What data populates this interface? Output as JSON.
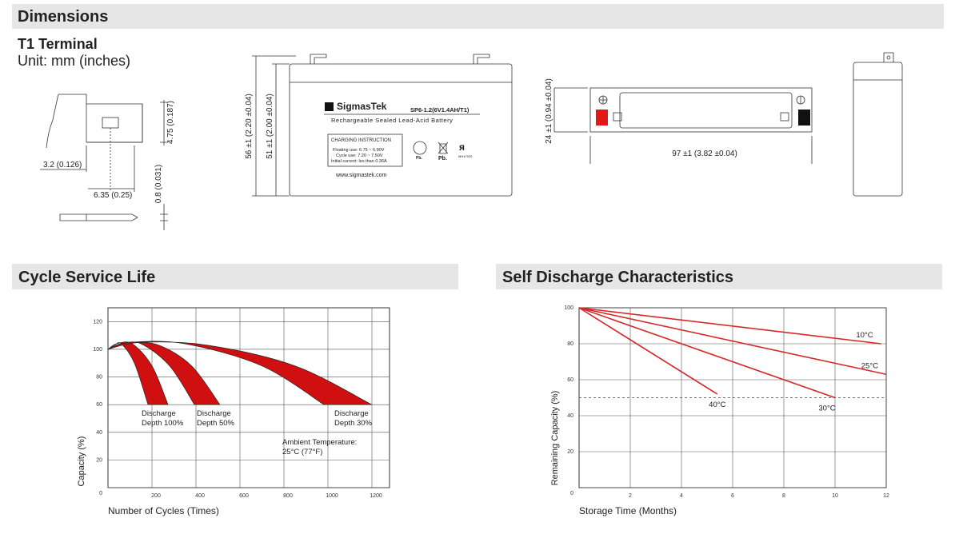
{
  "header": {
    "title": "Dimensions"
  },
  "terminal": {
    "title": "T1 Terminal",
    "unit": "Unit: mm (inches)",
    "dims": [
      "4.75 (0.187)",
      "3.2 (0.126)",
      "6.35 (0.25)",
      "0.8 (0.031)"
    ]
  },
  "front_view": {
    "dims": [
      "56 ±1 (2.20 ±0.04)",
      "51 ±1 (2.00 ±0.04)"
    ],
    "label": {
      "brand": "SigmasTek",
      "model": "SP6-1.2(6V1.4AH/T1)",
      "desc": "Rechargeable Sealed Lead-Acid Battery",
      "charging": [
        "CHARGING INSTRUCTION",
        "Floating use: 6.75 ~ 6.90V",
        "Cycle use: 7.20 ~ 7.50V",
        "Initial current: les than 0.36A"
      ],
      "icons": [
        "Pb.",
        "Pb.",
        "MH47929"
      ],
      "url": "www.sigmastek.com"
    }
  },
  "top_view": {
    "dims": [
      "24 ±1 (0.94 ±0.04)",
      "97 ±1 (3.82 ±0.04)"
    ]
  },
  "chart_data": [
    {
      "type": "area",
      "title": "Cycle Service Life",
      "x_label": "Number of Cycles (Times)",
      "y_label": "Capacity (%)",
      "xlim": [
        0,
        1280
      ],
      "ylim": [
        0,
        130
      ],
      "xticks": [
        200,
        400,
        600,
        800,
        1000,
        1200
      ],
      "yticks": [
        0,
        20,
        40,
        60,
        80,
        100,
        120
      ],
      "grid": true,
      "annotation": [
        "Ambient Temperature:",
        "25°C (77°F)"
      ],
      "series": [
        {
          "name": "Discharge Depth 100%",
          "color": "#d01010",
          "x": [
            0,
            40,
            110,
            200,
            273
          ],
          "values": [
            100,
            104,
            104,
            88,
            60
          ],
          "x_inner": [
            0,
            30,
            60,
            120,
            182
          ],
          "values_inner": [
            100,
            103,
            104,
            90,
            60
          ]
        },
        {
          "name": "Discharge Depth 50%",
          "color": "#d01010",
          "x": [
            0,
            100,
            230,
            380,
            509
          ],
          "values": [
            100,
            104.5,
            103,
            88,
            60
          ],
          "x_inner": [
            0,
            60,
            150,
            280,
            393
          ],
          "values_inner": [
            100,
            104,
            104,
            88,
            60
          ]
        },
        {
          "name": "Discharge Depth 30%",
          "color": "#d01010",
          "x": [
            0,
            150,
            450,
            850,
            1200
          ],
          "values": [
            100,
            105,
            103,
            88,
            60
          ],
          "x_inner": [
            0,
            100,
            350,
            700,
            982
          ],
          "values_inner": [
            100,
            105,
            104,
            88,
            60
          ]
        }
      ]
    },
    {
      "type": "line",
      "title": "Self Discharge Characteristics",
      "x_label": "Storage Time (Months)",
      "y_label": "Remaining Capacity (%)",
      "xlim": [
        0,
        12
      ],
      "ylim": [
        0,
        100
      ],
      "xticks": [
        2,
        4,
        6,
        8,
        10,
        12
      ],
      "yticks": [
        0,
        20,
        40,
        60,
        80,
        100
      ],
      "grid": true,
      "reference_line": 50,
      "series": [
        {
          "name": "10°C",
          "color": "#d42a2a",
          "x": [
            0,
            11.8
          ],
          "values": [
            100,
            80
          ]
        },
        {
          "name": "25°C",
          "color": "#d42a2a",
          "x": [
            0,
            12
          ],
          "values": [
            100,
            63
          ]
        },
        {
          "name": "30°C",
          "color": "#d42a2a",
          "x": [
            0,
            10
          ],
          "values": [
            100,
            50
          ]
        },
        {
          "name": "40°C",
          "color": "#d42a2a",
          "x": [
            0,
            5.4
          ],
          "values": [
            100,
            52
          ]
        }
      ]
    }
  ]
}
